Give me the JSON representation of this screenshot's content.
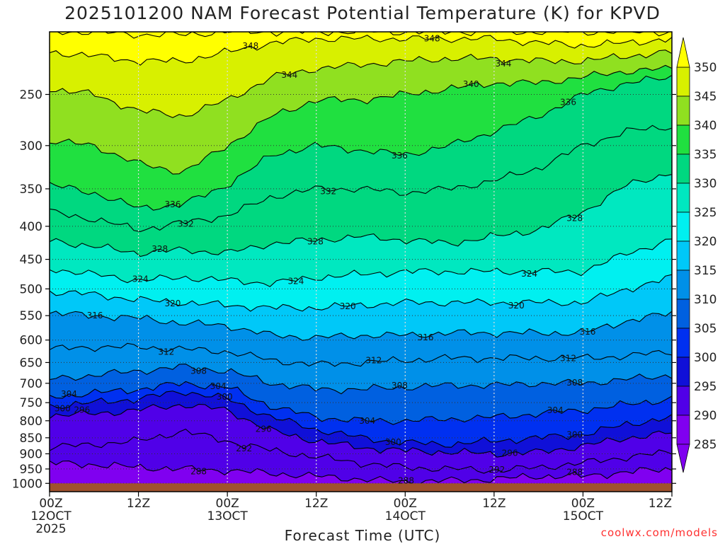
{
  "title": "2025101200 NAM Forecast Potential Temperature (K) for KPVD",
  "credit": "coolwx.com/models",
  "chart_data": {
    "type": "heatmap",
    "title": "2025101200 NAM Forecast Potential Temperature (K) for KPVD",
    "xlabel": "Forecast Time (UTC)",
    "ylabel": "",
    "units": "K",
    "x_ticks": [
      {
        "hour": 0,
        "lines": [
          "00Z",
          "12OCT",
          "2025"
        ]
      },
      {
        "hour": 12,
        "lines": [
          "12Z"
        ]
      },
      {
        "hour": 24,
        "lines": [
          "00Z",
          "13OCT"
        ]
      },
      {
        "hour": 36,
        "lines": [
          "12Z"
        ]
      },
      {
        "hour": 48,
        "lines": [
          "00Z",
          "14OCT"
        ]
      },
      {
        "hour": 60,
        "lines": [
          "12Z"
        ]
      },
      {
        "hour": 72,
        "lines": [
          "00Z",
          "15OCT"
        ]
      },
      {
        "hour": 84,
        "lines": [
          "12Z"
        ]
      }
    ],
    "xlim_hours": [
      0,
      84
    ],
    "y_scale": "log",
    "ylim": [
      1030,
      200
    ],
    "y_ticks": [
      250,
      300,
      350,
      400,
      450,
      500,
      550,
      600,
      650,
      700,
      750,
      800,
      850,
      900,
      950,
      1000
    ],
    "grid": true,
    "colorbar": {
      "levels": [
        285,
        290,
        295,
        300,
        305,
        310,
        315,
        320,
        325,
        330,
        335,
        340,
        345,
        350
      ],
      "colors": [
        "#8000f0",
        "#5000e8",
        "#1010d8",
        "#0030f0",
        "#0060e0",
        "#0090e8",
        "#00c8f8",
        "#00f0f0",
        "#00e8c0",
        "#00d880",
        "#20e040",
        "#90e020",
        "#d8f000",
        "#ffff00"
      ],
      "extend": "both"
    },
    "contour_interval": 4,
    "surface_pressure": 1000,
    "isentropes": {
      "hours": [
        0,
        6,
        12,
        18,
        24,
        30,
        36,
        42,
        48,
        54,
        60,
        66,
        72,
        78,
        84
      ],
      "levels": {
        "288": [
          930,
          935,
          945,
          950,
          955,
          965,
          975,
          985,
          995,
          990,
          985,
          975,
          975,
          960,
          950
        ],
        "292": [
          880,
          870,
          860,
          830,
          860,
          890,
          910,
          930,
          945,
          950,
          955,
          945,
          930,
          910,
          895
        ],
        "296": [
          785,
          780,
          770,
          755,
          770,
          830,
          860,
          880,
          890,
          895,
          900,
          895,
          875,
          850,
          835
        ],
        "300": [
          760,
          750,
          740,
          720,
          740,
          790,
          825,
          850,
          865,
          870,
          860,
          850,
          840,
          810,
          790
        ],
        "304": [
          735,
          725,
          715,
          700,
          710,
          760,
          790,
          800,
          800,
          795,
          790,
          780,
          770,
          755,
          740
        ],
        "308": [
          690,
          680,
          670,
          660,
          670,
          700,
          715,
          715,
          710,
          705,
          705,
          700,
          700,
          690,
          680
        ],
        "312": [
          620,
          615,
          615,
          620,
          625,
          645,
          655,
          650,
          645,
          640,
          640,
          640,
          640,
          635,
          625
        ],
        "316": [
          545,
          550,
          555,
          565,
          570,
          590,
          595,
          590,
          590,
          585,
          585,
          585,
          585,
          560,
          545
        ],
        "320": [
          505,
          510,
          520,
          525,
          530,
          535,
          535,
          530,
          525,
          525,
          525,
          525,
          525,
          500,
          480
        ],
        "324": [
          465,
          475,
          485,
          480,
          485,
          490,
          480,
          475,
          470,
          470,
          470,
          470,
          470,
          440,
          420
        ],
        "328": [
          420,
          430,
          440,
          435,
          440,
          425,
          420,
          415,
          420,
          425,
          415,
          405,
          380,
          345,
          330
        ],
        "332": [
          380,
          390,
          405,
          395,
          385,
          360,
          350,
          350,
          355,
          350,
          340,
          325,
          300,
          285,
          280
        ],
        "336": [
          345,
          355,
          375,
          370,
          345,
          310,
          300,
          305,
          310,
          300,
          285,
          270,
          250,
          240,
          235
        ],
        "340": [
          295,
          300,
          320,
          330,
          300,
          270,
          255,
          255,
          250,
          245,
          240,
          240,
          235,
          230,
          228
        ],
        "344": [
          245,
          250,
          265,
          270,
          255,
          235,
          228,
          225,
          222,
          220,
          220,
          222,
          222,
          218,
          215
        ],
        "348": [
          215,
          218,
          222,
          222,
          215,
          208,
          205,
          205,
          205,
          205,
          205,
          208,
          210,
          208,
          205
        ],
        "352": [
          200,
          200,
          202,
          202,
          200,
          200,
          200,
          200,
          200,
          200,
          200,
          200,
          200,
          200,
          200
        ]
      }
    },
    "contour_labels": [
      {
        "value": 348,
        "hour": 27
      },
      {
        "value": 348,
        "hour": 52
      },
      {
        "value": 344,
        "hour": 32
      },
      {
        "value": 344,
        "hour": 61
      },
      {
        "value": 340,
        "hour": 57
      },
      {
        "value": 336,
        "hour": 70
      },
      {
        "value": 336,
        "hour": 47
      },
      {
        "value": 328,
        "hour": 71
      },
      {
        "value": 332,
        "hour": 38
      },
      {
        "value": 336,
        "hour": 17
      },
      {
        "value": 332,
        "hour": 18
      },
      {
        "value": 328,
        "hour": 36
      },
      {
        "value": 328,
        "hour": 15
      },
      {
        "value": 324,
        "hour": 12
      },
      {
        "value": 324,
        "hour": 33
      },
      {
        "value": 324,
        "hour": 65
      },
      {
        "value": 320,
        "hour": 40
      },
      {
        "value": 320,
        "hour": 17
      },
      {
        "value": 320,
        "hour": 63
      },
      {
        "value": 316,
        "hour": 6
      },
      {
        "value": 316,
        "hour": 51
      },
      {
        "value": 316,
        "hour": 73
      },
      {
        "value": 312,
        "hour": 16
      },
      {
        "value": 312,
        "hour": 44
      },
      {
        "value": 312,
        "hour": 70
      },
      {
        "value": 308,
        "hour": 20
      },
      {
        "value": 308,
        "hour": 47
      },
      {
        "value": 308,
        "hour": 71
      },
      {
        "value": 304,
        "hour": 23
      },
      {
        "value": 304,
        "hour": 3
      },
      {
        "value": 304,
        "hour": 43
      },
      {
        "value": 304,
        "hour": 68
      },
      {
        "value": 300,
        "hour": 24
      },
      {
        "value": 300,
        "hour": 2
      },
      {
        "value": 300,
        "hour": 46
      },
      {
        "value": 300,
        "hour": 71
      },
      {
        "value": 296,
        "hour": 4
      },
      {
        "value": 296,
        "hour": 29
      },
      {
        "value": 296,
        "hour": 62
      },
      {
        "value": 292,
        "hour": 26
      },
      {
        "value": 292,
        "hour": 60
      },
      {
        "value": 288,
        "hour": 20
      },
      {
        "value": 288,
        "hour": 48
      },
      {
        "value": 288,
        "hour": 71
      }
    ]
  }
}
